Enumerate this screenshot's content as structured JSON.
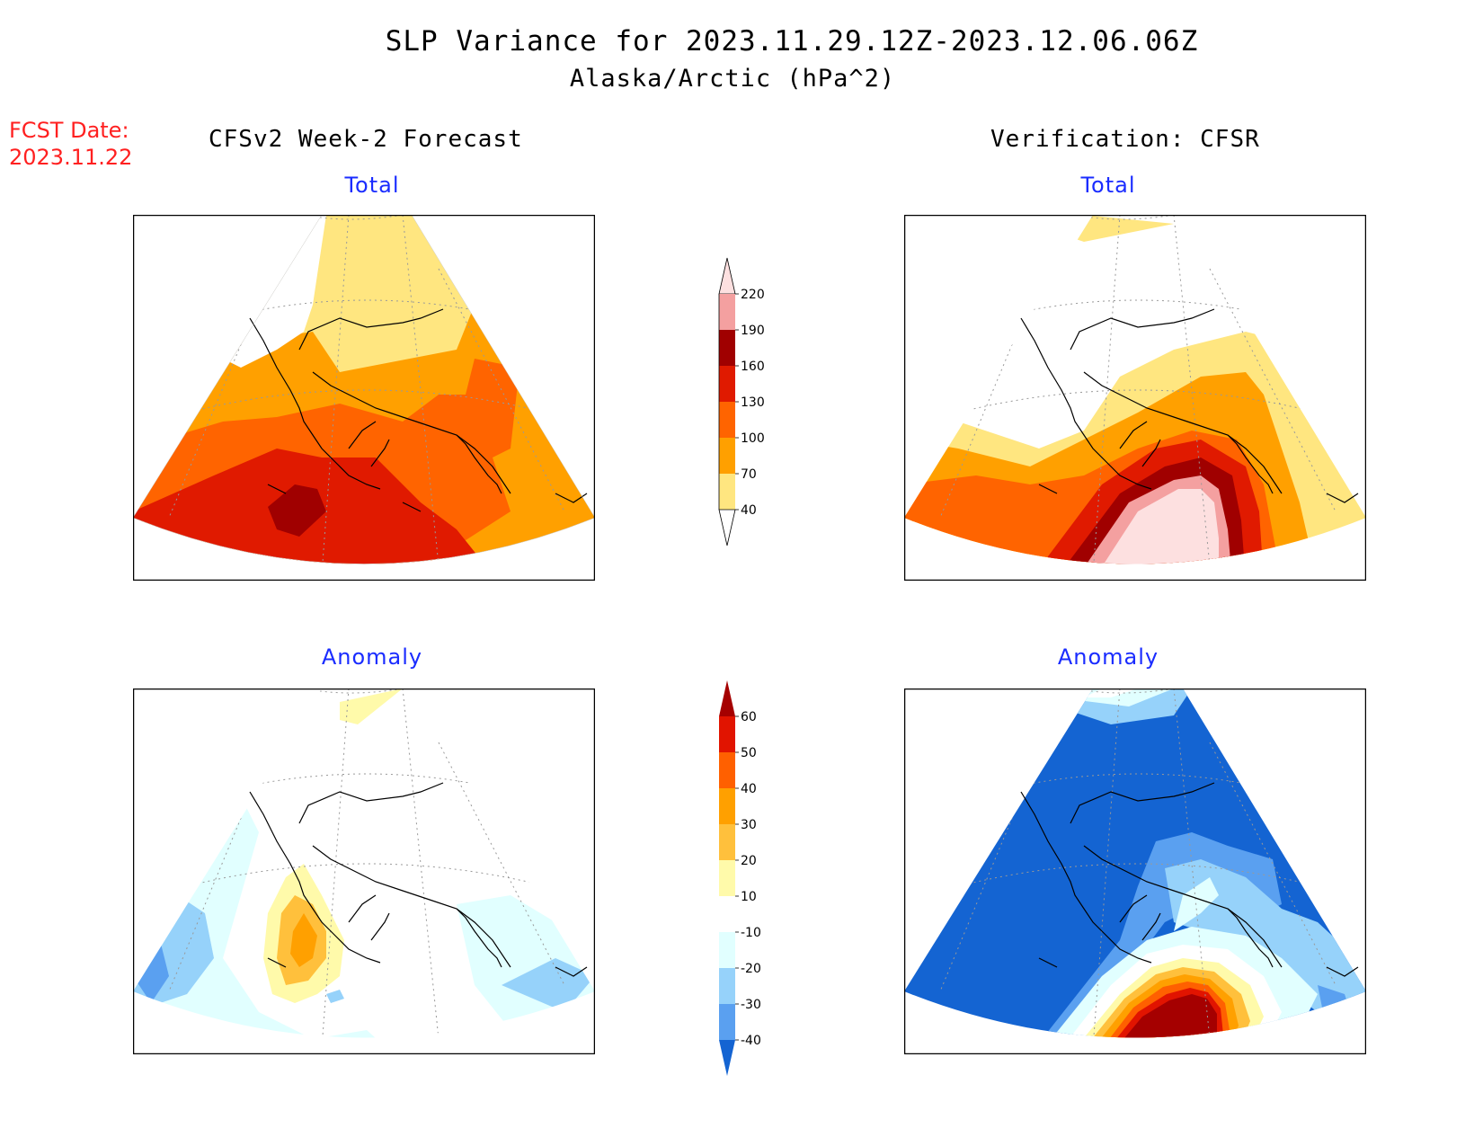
{
  "header": {
    "title": "SLP Variance for 2023.11.29.12Z-2023.12.06.06Z",
    "subtitle": "Alaska/Arctic (hPa^2)"
  },
  "fcst": {
    "label": "FCST Date:",
    "date": "2023.11.22"
  },
  "columns": {
    "left": "CFSv2 Week-2 Forecast",
    "right": "Verification: CFSR"
  },
  "panels": {
    "top_left": "Total",
    "top_right": "Total",
    "bottom_left": "Anomaly",
    "bottom_right": "Anomaly"
  },
  "colorbars": {
    "total": {
      "levels": [
        "40",
        "70",
        "100",
        "130",
        "160",
        "190",
        "220"
      ],
      "colors": [
        "#ffe680",
        "#ffa000",
        "#ff6400",
        "#e01a00",
        "#a00000",
        "#f4a0a0",
        "#fde0e0"
      ]
    },
    "anomaly": {
      "levels": [
        "-40",
        "-30",
        "-20",
        "-10",
        "10",
        "20",
        "30",
        "40",
        "50",
        "60"
      ],
      "colors": [
        "#1464d2",
        "#5aa0f0",
        "#96d2fa",
        "#e1ffff",
        "#ffffff",
        "#fffaaa",
        "#ffc03c",
        "#ffa000",
        "#ff6000",
        "#e11400",
        "#a50000"
      ]
    }
  }
}
